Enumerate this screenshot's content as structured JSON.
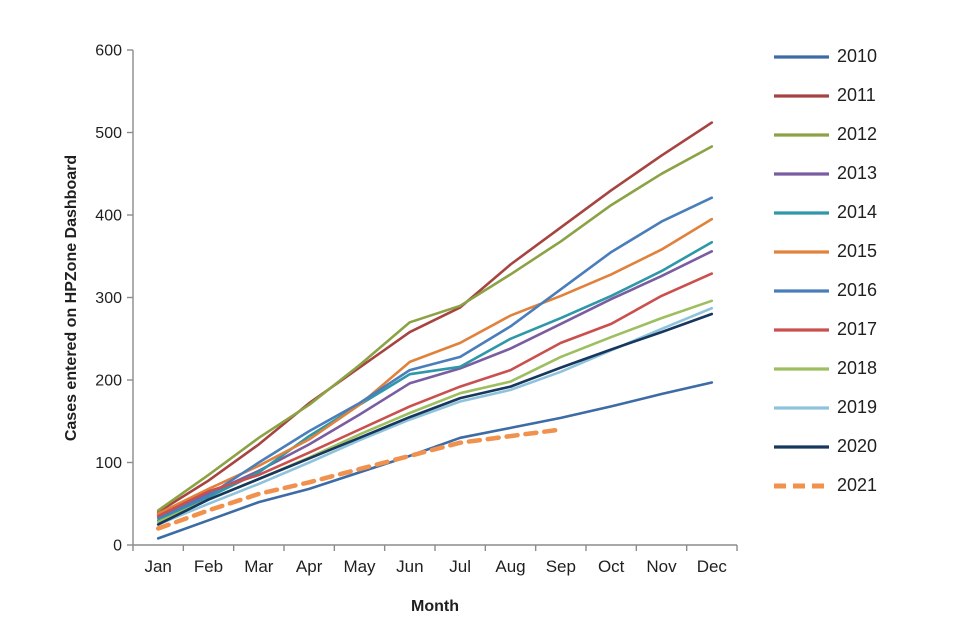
{
  "chart_data": {
    "type": "line",
    "title": "",
    "xlabel": "Month",
    "ylabel": "Cases entered on HPZone Dashboard",
    "ylim": [
      0,
      600
    ],
    "ytick_interval": 100,
    "yticks": [
      0,
      100,
      200,
      300,
      400,
      500,
      600
    ],
    "grid": false,
    "legend_position": "right",
    "axis_color": "#8c8c8c",
    "categories": [
      "Jan",
      "Feb",
      "Mar",
      "Apr",
      "May",
      "Jun",
      "Jul",
      "Aug",
      "Sep",
      "Oct",
      "Nov",
      "Dec"
    ],
    "series": [
      {
        "name": "2010",
        "color": "#3D6BA6",
        "dash": false,
        "values": [
          8,
          30,
          52,
          68,
          88,
          108,
          130,
          142,
          154,
          168,
          183,
          197
        ]
      },
      {
        "name": "2011",
        "color": "#A64441",
        "dash": false,
        "values": [
          40,
          78,
          122,
          172,
          215,
          258,
          288,
          340,
          385,
          430,
          472,
          512
        ]
      },
      {
        "name": "2012",
        "color": "#8BA245",
        "dash": false,
        "values": [
          42,
          85,
          130,
          170,
          218,
          270,
          290,
          328,
          368,
          412,
          450,
          483
        ]
      },
      {
        "name": "2013",
        "color": "#7A5DA0",
        "dash": false,
        "values": [
          36,
          62,
          90,
          122,
          158,
          196,
          214,
          238,
          268,
          298,
          326,
          356
        ]
      },
      {
        "name": "2014",
        "color": "#2E97A8",
        "dash": false,
        "values": [
          30,
          58,
          88,
          132,
          170,
          207,
          216,
          250,
          275,
          302,
          332,
          367
        ]
      },
      {
        "name": "2015",
        "color": "#E0813C",
        "dash": false,
        "values": [
          38,
          68,
          96,
          128,
          170,
          222,
          245,
          278,
          302,
          328,
          358,
          395
        ]
      },
      {
        "name": "2016",
        "color": "#4A7EBB",
        "dash": false,
        "values": [
          33,
          60,
          100,
          138,
          172,
          212,
          228,
          265,
          310,
          355,
          392,
          421
        ]
      },
      {
        "name": "2017",
        "color": "#C9504E",
        "dash": false,
        "values": [
          35,
          65,
          85,
          112,
          140,
          168,
          192,
          212,
          245,
          268,
          302,
          329
        ]
      },
      {
        "name": "2018",
        "color": "#9DBF5F",
        "dash": false,
        "values": [
          28,
          55,
          80,
          106,
          134,
          160,
          184,
          198,
          228,
          252,
          275,
          296
        ]
      },
      {
        "name": "2019",
        "color": "#8FC3DC",
        "dash": false,
        "values": [
          25,
          50,
          74,
          100,
          127,
          152,
          174,
          188,
          210,
          236,
          262,
          287
        ]
      },
      {
        "name": "2020",
        "color": "#17375E",
        "dash": false,
        "values": [
          25,
          55,
          80,
          105,
          130,
          155,
          178,
          192,
          215,
          237,
          258,
          280
        ]
      },
      {
        "name": "2021",
        "color": "#F0914E",
        "dash": true,
        "values": [
          20,
          42,
          62,
          76,
          92,
          108,
          124,
          132,
          140
        ]
      }
    ]
  },
  "labels": {
    "y_axis_title": "Cases entered on HPZone Dashboard",
    "x_axis_title": "Month"
  }
}
